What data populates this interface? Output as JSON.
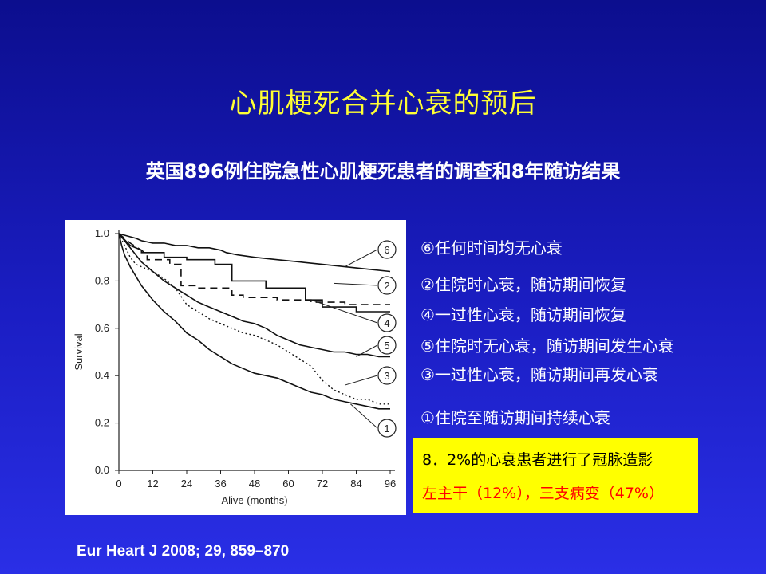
{
  "slide": {
    "title": "心肌梗死合并心衰的预后",
    "subtitle": "英国896例住院急性心肌梗死患者的调查和8年随访结果",
    "legend": [
      {
        "marker": "⑥",
        "text": "⑥任何时间均无心衰"
      },
      {
        "marker": "②",
        "text": "②住院时心衰，随访期间恢复"
      },
      {
        "marker": "④",
        "text": "④一过性心衰，随访期间恢复"
      },
      {
        "marker": "⑤",
        "text": "⑤住院时无心衰，随访期间发生心衰"
      },
      {
        "marker": "③",
        "text": "③一过性心衰，随访期间再发心衰"
      },
      {
        "marker": "①",
        "text": "①住院至随访期间持续心衰"
      }
    ],
    "note": {
      "line1": "8．2%的心衰患者进行了冠脉造影",
      "line2": "左主干（12%），三支病变（47%）"
    },
    "citation": "Eur Heart J 2008; 29, 859–870"
  },
  "chart_data": {
    "type": "line",
    "xlabel": "Alive (months)",
    "ylabel": "Survival",
    "xlim": [
      0,
      96
    ],
    "ylim": [
      0.0,
      1.0
    ],
    "x_ticks": [
      0,
      12,
      24,
      36,
      48,
      60,
      72,
      84,
      96
    ],
    "x_tick_labels": [
      "0",
      "12",
      "24",
      "36",
      "48",
      "60",
      "72",
      "84",
      "96"
    ],
    "y_ticks": [
      0.0,
      0.2,
      0.4,
      0.6,
      0.8,
      1.0
    ],
    "y_tick_labels": [
      "0.0",
      "0.2",
      "0.4",
      "0.6",
      "0.8",
      "1.0"
    ],
    "grid": false,
    "series": [
      {
        "name": "6",
        "style": "solid",
        "x": [
          0,
          3,
          6,
          8,
          12,
          16,
          20,
          24,
          28,
          32,
          36,
          38,
          42,
          48,
          56,
          64,
          72,
          80,
          88,
          96
        ],
        "y": [
          1.0,
          0.99,
          0.98,
          0.97,
          0.96,
          0.96,
          0.95,
          0.95,
          0.94,
          0.94,
          0.93,
          0.92,
          0.91,
          0.9,
          0.89,
          0.88,
          0.87,
          0.86,
          0.85,
          0.84
        ]
      },
      {
        "name": "2",
        "style": "solid",
        "x": [
          0,
          4,
          8,
          8,
          16,
          16,
          24,
          24,
          34,
          34,
          40,
          40,
          52,
          52,
          66,
          66,
          72,
          72,
          84,
          84,
          96
        ],
        "y": [
          1.0,
          0.95,
          0.93,
          0.92,
          0.92,
          0.9,
          0.9,
          0.89,
          0.89,
          0.87,
          0.87,
          0.8,
          0.8,
          0.77,
          0.77,
          0.72,
          0.72,
          0.69,
          0.69,
          0.67,
          0.67
        ]
      },
      {
        "name": "4",
        "style": "dashed",
        "x": [
          0,
          4,
          8,
          10,
          10,
          18,
          18,
          22,
          22,
          28,
          28,
          40,
          40,
          44,
          44,
          56,
          56,
          68,
          68,
          80,
          80,
          96
        ],
        "y": [
          1.0,
          0.96,
          0.93,
          0.91,
          0.89,
          0.89,
          0.87,
          0.87,
          0.78,
          0.78,
          0.77,
          0.77,
          0.74,
          0.74,
          0.73,
          0.73,
          0.72,
          0.72,
          0.71,
          0.71,
          0.7,
          0.7
        ]
      },
      {
        "name": "5",
        "style": "solid",
        "x": [
          0,
          2,
          4,
          6,
          8,
          12,
          16,
          20,
          24,
          28,
          32,
          36,
          40,
          44,
          48,
          52,
          56,
          60,
          64,
          68,
          72,
          76,
          80,
          84,
          88,
          92,
          96
        ],
        "y": [
          1.0,
          0.97,
          0.94,
          0.91,
          0.88,
          0.84,
          0.8,
          0.77,
          0.74,
          0.71,
          0.69,
          0.67,
          0.65,
          0.63,
          0.62,
          0.6,
          0.57,
          0.55,
          0.53,
          0.52,
          0.51,
          0.5,
          0.5,
          0.49,
          0.49,
          0.48,
          0.48
        ]
      },
      {
        "name": "3",
        "style": "dotted",
        "x": [
          0,
          2,
          4,
          6,
          8,
          10,
          12,
          16,
          20,
          24,
          28,
          32,
          36,
          40,
          44,
          48,
          52,
          56,
          60,
          64,
          68,
          72,
          76,
          80,
          84,
          88,
          92,
          96
        ],
        "y": [
          1.0,
          0.95,
          0.9,
          0.87,
          0.86,
          0.85,
          0.84,
          0.81,
          0.77,
          0.7,
          0.67,
          0.64,
          0.62,
          0.6,
          0.58,
          0.57,
          0.55,
          0.53,
          0.5,
          0.47,
          0.44,
          0.38,
          0.34,
          0.32,
          0.3,
          0.3,
          0.28,
          0.28
        ]
      },
      {
        "name": "1",
        "style": "solid",
        "x": [
          0,
          1,
          2,
          4,
          6,
          8,
          10,
          12,
          16,
          20,
          24,
          28,
          32,
          36,
          40,
          44,
          48,
          52,
          56,
          60,
          64,
          68,
          72,
          76,
          80,
          84,
          88,
          92,
          96
        ],
        "y": [
          1.0,
          0.95,
          0.91,
          0.86,
          0.82,
          0.78,
          0.75,
          0.72,
          0.67,
          0.63,
          0.58,
          0.55,
          0.51,
          0.48,
          0.45,
          0.43,
          0.41,
          0.4,
          0.39,
          0.37,
          0.35,
          0.33,
          0.32,
          0.3,
          0.29,
          0.28,
          0.27,
          0.26,
          0.26
        ]
      }
    ]
  }
}
